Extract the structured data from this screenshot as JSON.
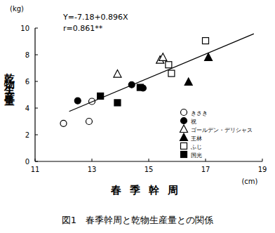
{
  "chart_data": {
    "type": "scatter",
    "title": "図1　春季幹周と乾物生産量との関係",
    "x_label": "春季幹周",
    "x_unit": "(cm)",
    "y_label": "乾物生産量",
    "y_unit": "(kg)",
    "annotations": [
      "Y=-7.18+0.896X",
      "r=0.861**"
    ],
    "xlim": [
      11,
      19
    ],
    "xticks": [
      11,
      13,
      15,
      17,
      19
    ],
    "ylim": [
      0,
      10
    ],
    "yticks": [
      0,
      2,
      4,
      6,
      8,
      10
    ],
    "grid": false,
    "legend": "lower right",
    "series": [
      {
        "name": "きさき",
        "color": "#000000",
        "marker": "circle-open",
        "x": [
          12.0,
          12.9,
          13.0
        ],
        "values": [
          2.85,
          3.0,
          4.5
        ]
      },
      {
        "name": "祝",
        "color": "#000000",
        "marker": "circle-filled",
        "x": [
          12.5,
          14.4,
          14.8
        ],
        "values": [
          4.55,
          5.75,
          5.5
        ]
      },
      {
        "name": "ゴールデン・デリシャス",
        "color": "#000000",
        "marker": "triangle-open",
        "x": [
          13.9,
          15.4,
          15.5
        ],
        "values": [
          6.55,
          7.6,
          7.8
        ]
      },
      {
        "name": "王林",
        "color": "#000000",
        "marker": "triangle-filled",
        "x": [
          16.4,
          17.1
        ],
        "values": [
          5.95,
          7.8
        ]
      },
      {
        "name": "ふじ",
        "color": "#000000",
        "marker": "square-open",
        "x": [
          15.7,
          15.8,
          17.0
        ],
        "values": [
          7.25,
          6.6,
          9.05
        ]
      },
      {
        "name": "国光",
        "color": "#000000",
        "marker": "square-filled",
        "x": [
          13.3,
          13.9,
          14.7
        ],
        "values": [
          4.9,
          4.4,
          5.55
        ]
      },
      {
        "type": "line",
        "line_style": "solid",
        "color": "#000000",
        "x": [
          12.2,
          18.7
        ],
        "values": [
          3.75,
          9.57
        ]
      }
    ]
  }
}
